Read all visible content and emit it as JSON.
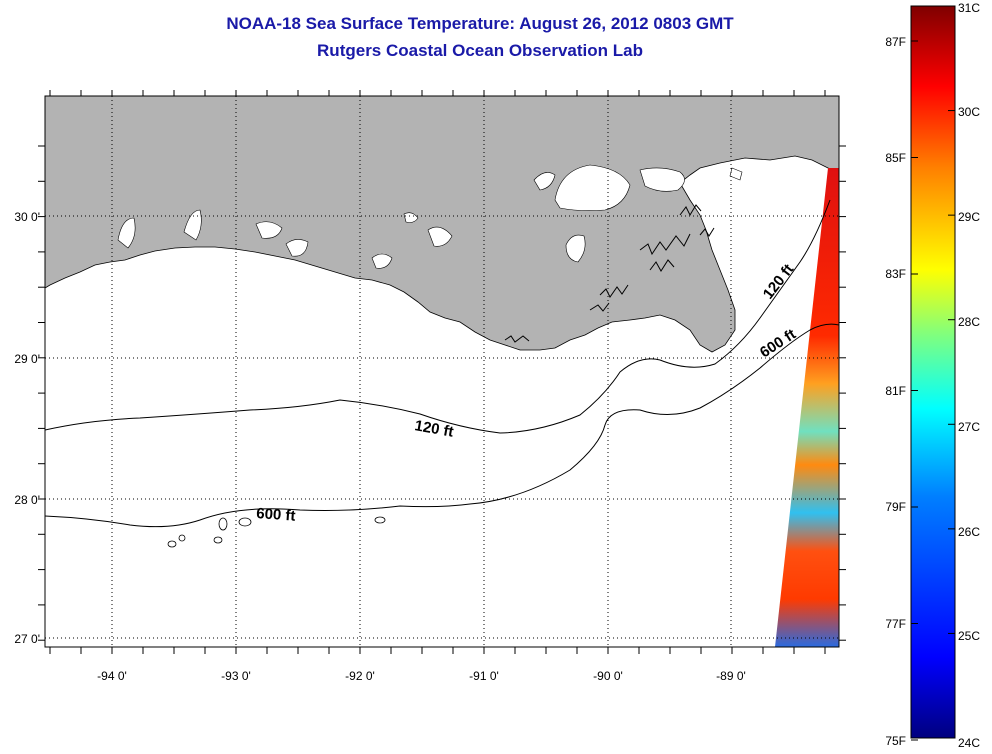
{
  "header": {
    "title": "NOAA-18 Sea Surface Temperature:  August 26, 2012 0803 GMT",
    "subtitle": "Rutgers Coastal Ocean Observation Lab"
  },
  "map": {
    "lat_labels": [
      "30 0'",
      "29 0'",
      "28 0'",
      "27 0'"
    ],
    "lon_labels": [
      "-94 0'",
      "-93 0'",
      "-92 0'",
      "-91 0'",
      "-90 0'",
      "-89 0'"
    ],
    "contour_labels": [
      "120 ft",
      "600 ft",
      "120 ft",
      "600 ft"
    ],
    "land_color": "#b3b3b3",
    "water_color": "#ffffff"
  },
  "colorbar": {
    "celsius_labels": [
      "31C",
      "30C",
      "29C",
      "28C",
      "27C",
      "26C",
      "25C",
      "24C"
    ],
    "fahrenheit_labels": [
      "87F",
      "85F",
      "83F",
      "81F",
      "79F",
      "77F",
      "75F"
    ],
    "colors": [
      "#00007f",
      "#0000ff",
      "#007fff",
      "#00ffff",
      "#7fff7f",
      "#ffff00",
      "#ff7f00",
      "#ff0000",
      "#7f0000"
    ]
  }
}
